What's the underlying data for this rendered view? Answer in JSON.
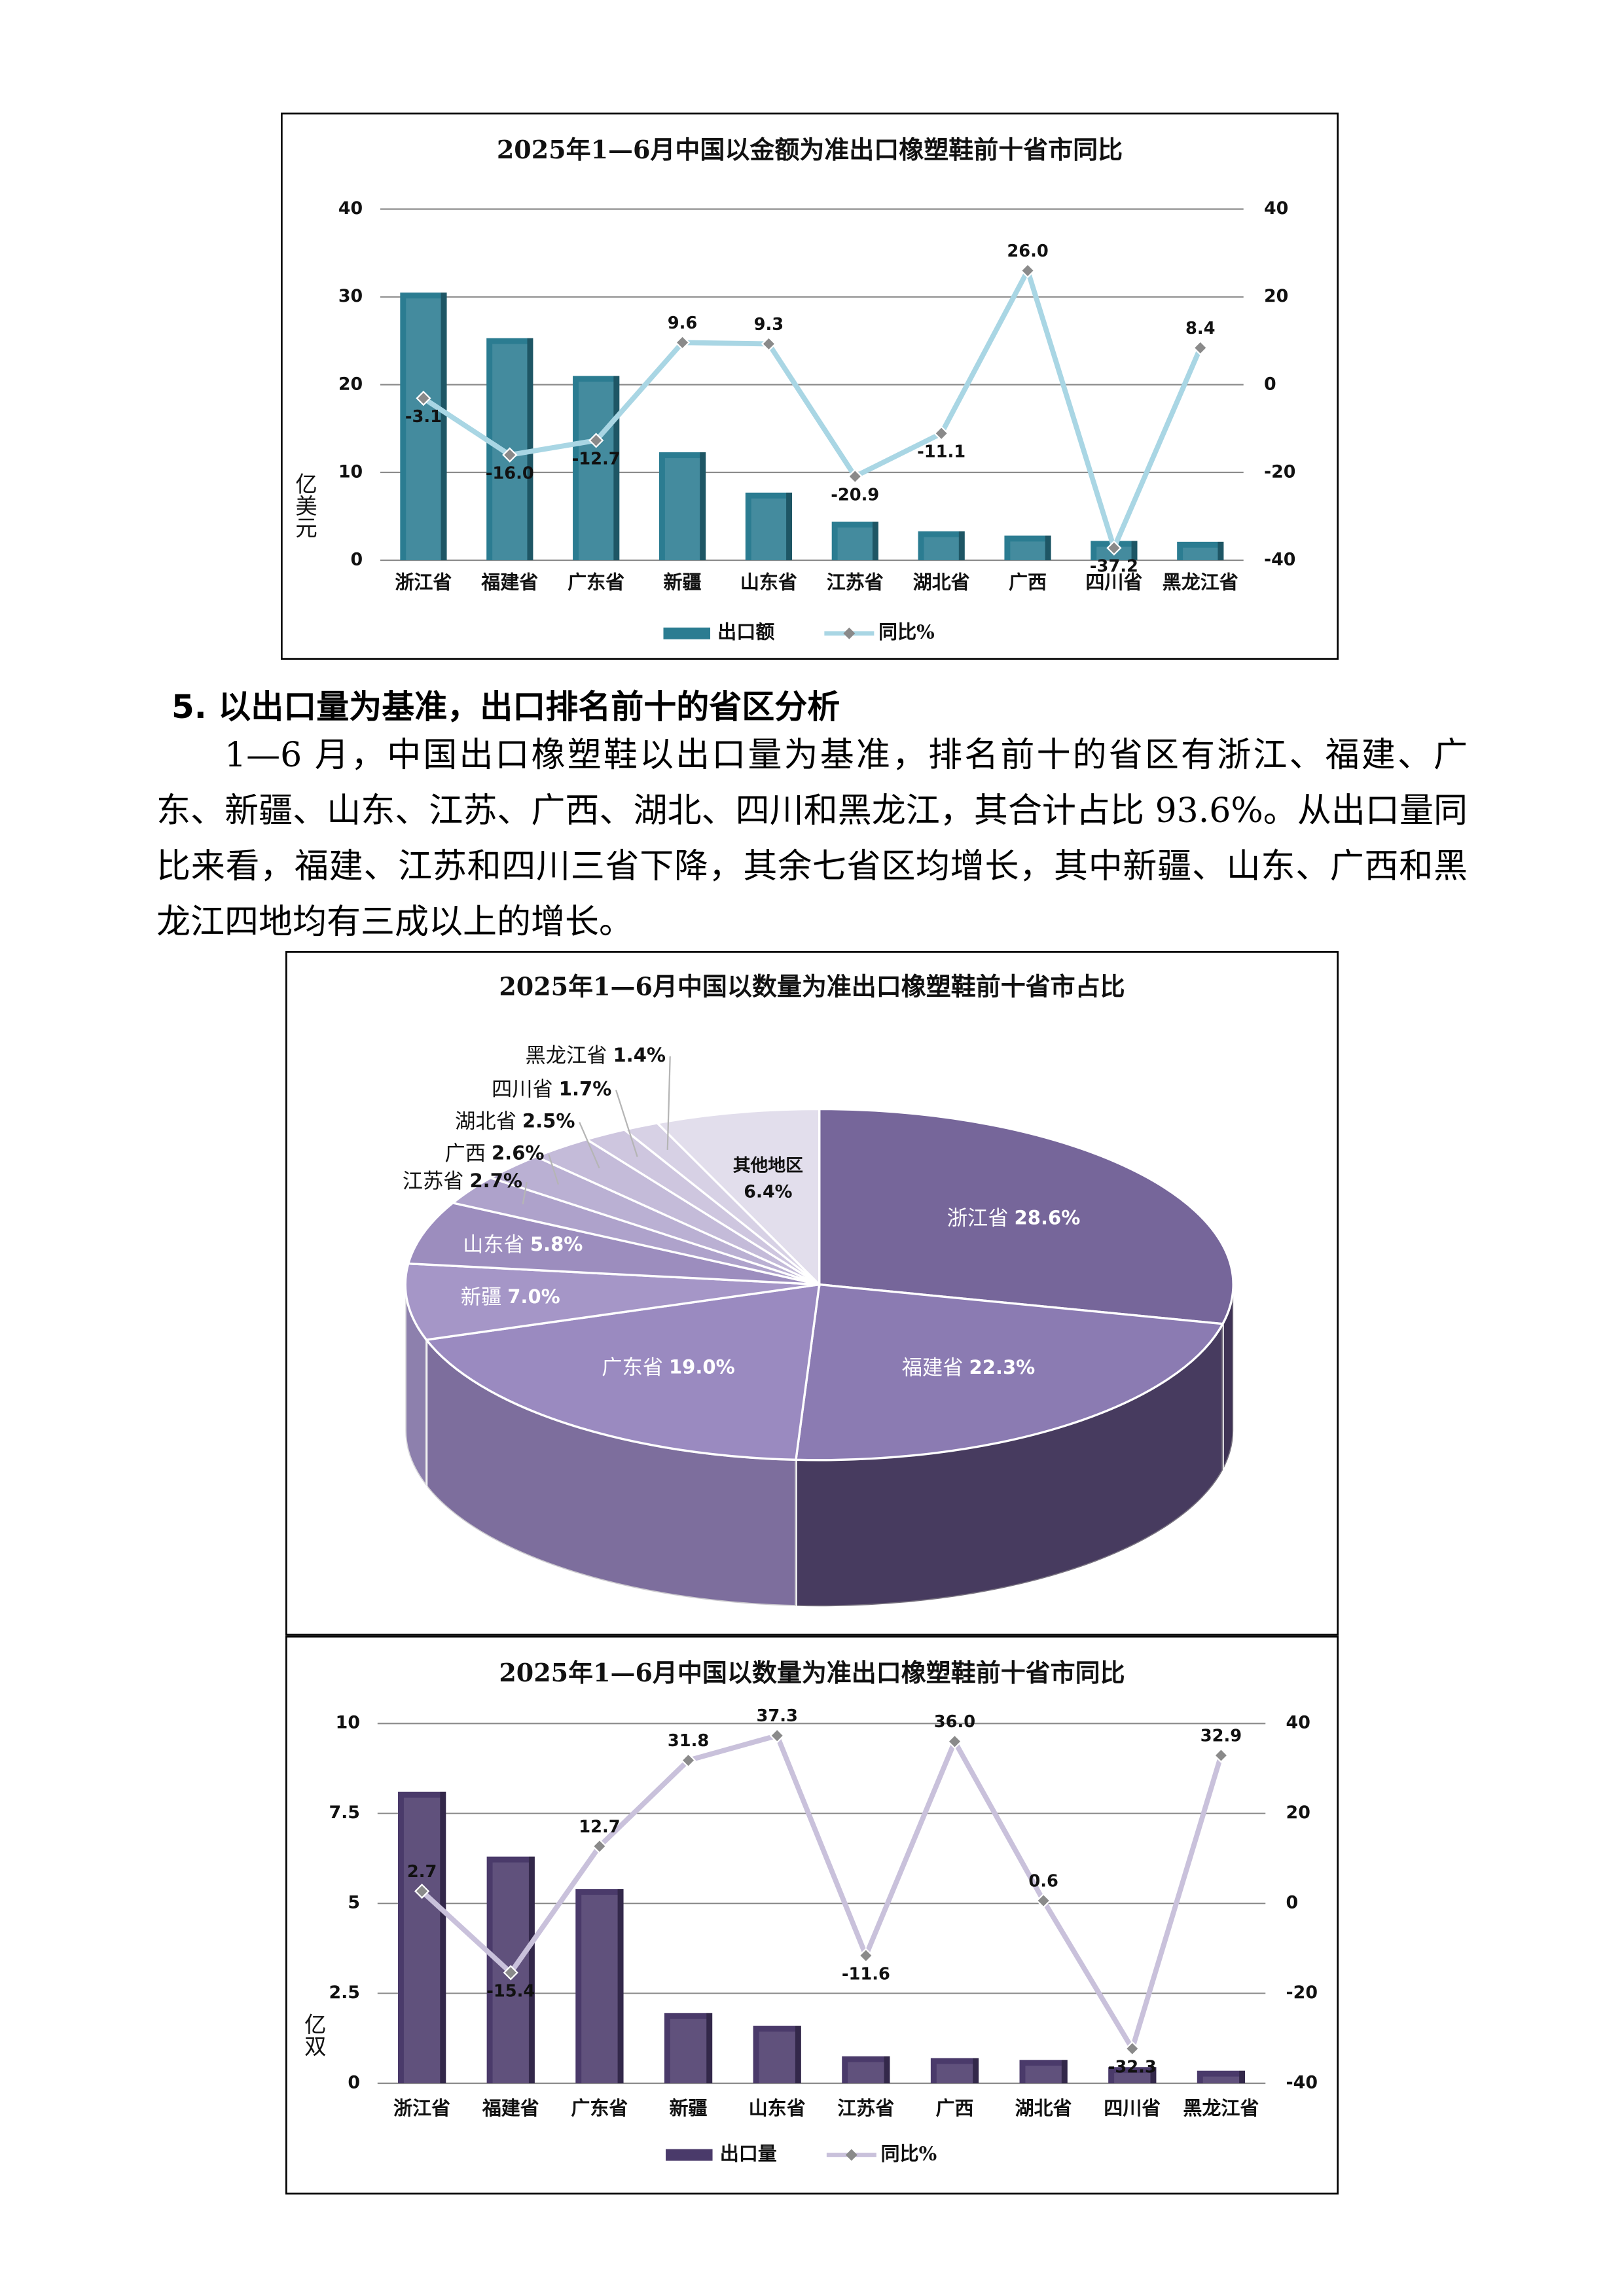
{
  "section": {
    "heading": "5. 以出口量为基准，出口排名前十的省区分析",
    "paragraph": "1—6 月，中国出口橡塑鞋以出口量为基准，排名前十的省区有浙江、福建、广东、新疆、山东、江苏、广西、湖北、四川和黑龙江，其合计占比 93.6%。从出口量同比来看，福建、江苏和四川三省下降，其余七省区均增长，其中新疆、山东、广西和黑龙江四地均有三成以上的增长。"
  },
  "chart_data": [
    {
      "type": "bar",
      "title": "2025年1—6月中国以金额为准出口橡塑鞋前十省市同比",
      "y_label": "亿美元",
      "categories": [
        "浙江省",
        "福建省",
        "广东省",
        "新疆",
        "山东省",
        "江苏省",
        "湖北省",
        "广西",
        "四川省",
        "黑龙江省"
      ],
      "series": [
        {
          "name": "出口额",
          "type": "bar",
          "color": "#2b7c91",
          "values": [
            30.5,
            25.3,
            21.0,
            12.3,
            7.7,
            4.4,
            3.3,
            2.8,
            2.2,
            2.1
          ]
        },
        {
          "name": "同比%",
          "type": "line",
          "axis": "y2",
          "color": "#a9d6e4",
          "values": [
            -3.1,
            -16.0,
            -12.7,
            9.6,
            9.3,
            -20.9,
            -11.1,
            26.0,
            -37.2,
            8.4
          ],
          "value_labels": [
            "-3.1",
            "-16.0",
            "-12.7",
            "9.6",
            "9.3",
            "-20.9",
            "-11.1",
            "26.0",
            "-37.2",
            "8.4"
          ]
        }
      ],
      "ylim": [
        0,
        40
      ],
      "yticks": [
        0,
        10,
        20,
        30,
        40
      ],
      "y2lim": [
        -40,
        40
      ],
      "y2ticks": [
        -40,
        -20,
        0,
        20,
        40
      ],
      "grid": true
    },
    {
      "type": "pie",
      "title": "2025年1—6月中国以数量为准出口橡塑鞋前十省市占比",
      "categories": [
        "浙江省",
        "福建省",
        "广东省",
        "新疆",
        "山东省",
        "江苏省",
        "广西",
        "湖北省",
        "四川省",
        "黑龙江省",
        "其他地区"
      ],
      "values": [
        28.6,
        22.3,
        19.0,
        7.0,
        5.8,
        2.7,
        2.6,
        2.5,
        1.7,
        1.4,
        6.4
      ],
      "value_labels": [
        "28.6%",
        "22.3%",
        "19.0%",
        "7.0%",
        "5.8%",
        "2.7%",
        "2.6%",
        "2.5%",
        "1.7%",
        "1.4%",
        "6.4%"
      ],
      "colors": [
        "#76669a",
        "#8b7bb2",
        "#9a8ac0",
        "#a596c7",
        "#9c8dbe",
        "#ae a2cb",
        "#bab0d3",
        "#c4bbd9",
        "#cec6df",
        "#d7d1e5",
        "#e2deec"
      ]
    },
    {
      "type": "bar",
      "title": "2025年1—6月中国以数量为准出口橡塑鞋前十省市同比",
      "y_label": "亿双",
      "categories": [
        "浙江省",
        "福建省",
        "广东省",
        "新疆",
        "山东省",
        "江苏省",
        "广西",
        "湖北省",
        "四川省",
        "黑龙江省"
      ],
      "series": [
        {
          "name": "出口量",
          "type": "bar",
          "color": "#4a3a6a",
          "values": [
            8.1,
            6.3,
            5.4,
            1.95,
            1.6,
            0.75,
            0.7,
            0.65,
            0.45,
            0.35
          ]
        },
        {
          "name": "同比%",
          "type": "line",
          "axis": "y2",
          "color": "#c9c1db",
          "values": [
            2.7,
            -15.4,
            12.7,
            31.8,
            37.3,
            -11.6,
            36.0,
            0.6,
            -32.3,
            32.9
          ],
          "value_labels": [
            "2.7",
            "-15.4",
            "12.7",
            "31.8",
            "37.3",
            "-11.6",
            "36.0",
            "0.6",
            "-32.3",
            "32.9"
          ]
        }
      ],
      "ylim": [
        0,
        10
      ],
      "yticks": [
        0,
        2.5,
        5,
        7.5,
        10
      ],
      "y2lim": [
        -40,
        40
      ],
      "y2ticks": [
        -40,
        -20,
        0,
        20,
        40
      ],
      "grid": true
    }
  ]
}
